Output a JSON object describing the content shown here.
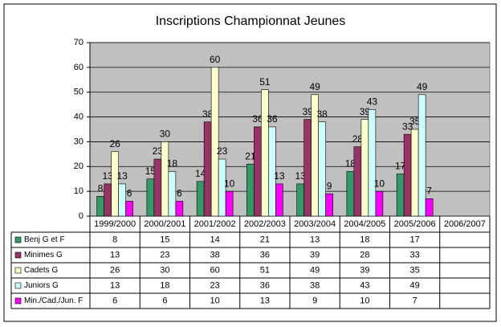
{
  "chart_data": {
    "type": "bar",
    "title": "Inscriptions Championnat Jeunes",
    "categories": [
      "1999/2000",
      "2000/2001",
      "2001/2002",
      "2002/2003",
      "2003/2004",
      "2004/2005",
      "2005/2006",
      "2006/2007"
    ],
    "series": [
      {
        "name": "Benj G et F",
        "color": "#339966",
        "values": [
          8,
          15,
          14,
          21,
          13,
          18,
          17,
          null
        ]
      },
      {
        "name": "Minimes G",
        "color": "#993366",
        "values": [
          13,
          23,
          38,
          36,
          39,
          28,
          33,
          null
        ]
      },
      {
        "name": "Cadets G",
        "color": "#ffffcc",
        "values": [
          26,
          30,
          60,
          51,
          49,
          39,
          35,
          null
        ]
      },
      {
        "name": "Juniors G",
        "color": "#ccffff",
        "values": [
          13,
          18,
          23,
          36,
          38,
          43,
          49,
          null
        ]
      },
      {
        "name": "Min./Cad./Jun. F",
        "color": "#ff00ff",
        "values": [
          6,
          6,
          10,
          13,
          9,
          10,
          7,
          null
        ]
      }
    ],
    "ylim": [
      0,
      70
    ],
    "yticks": [
      0,
      10,
      20,
      30,
      40,
      50,
      60,
      70
    ],
    "grid": true
  }
}
